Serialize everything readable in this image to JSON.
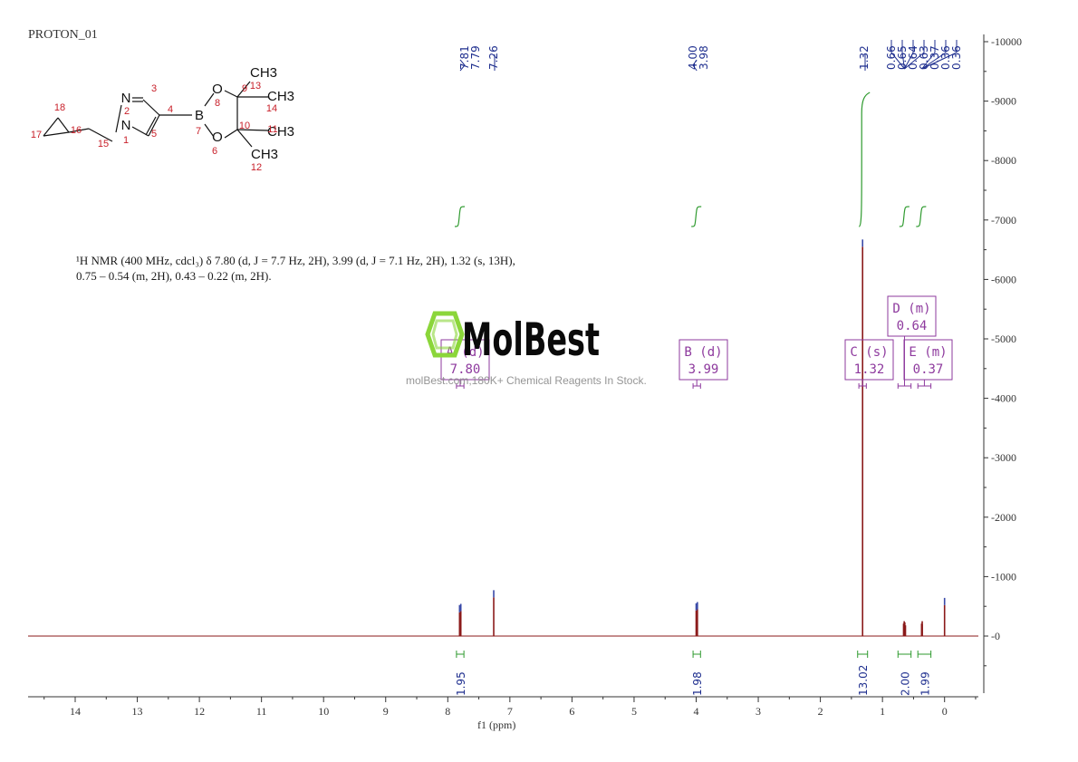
{
  "spectrum_name": "PROTON_01",
  "nmr_description": {
    "line1": "¹H NMR (400 MHz, cdcl₃) δ 7.80 (d, J = 7.7 Hz, 2H), 3.99 (d, J = 7.1 Hz, 2H), 1.32 (s, 13H),",
    "line2": "0.75 – 0.54 (m, 2H), 0.43 – 0.22 (m, 2H)."
  },
  "watermark": {
    "brand": "MolBest",
    "tagline": "molBest.com,180K+ Chemical Reagents In Stock."
  },
  "structure_labels": {
    "atoms": [
      "N",
      "N",
      "B",
      "O",
      "O",
      "CH3",
      "CH3",
      "CH3",
      "CH3"
    ],
    "numbers": [
      "1",
      "2",
      "3",
      "4",
      "5",
      "6",
      "7",
      "8",
      "9",
      "10",
      "11",
      "12",
      "13",
      "14",
      "15",
      "16",
      "17",
      "18"
    ]
  },
  "colors": {
    "spectrum": "#8b1a1a",
    "integral": "#2e9a2e",
    "peak_label": "#1f2f8f",
    "multiplet_box": "#8e3a9e",
    "axis": "#333333"
  },
  "chart_data": {
    "type": "line",
    "title": "PROTON_01",
    "xlabel": "f1 (ppm)",
    "ylabel": "",
    "xlim": [
      14.8,
      -0.5
    ],
    "ylim": [
      -1000,
      10000
    ],
    "x_ticks": [
      14,
      13,
      12,
      11,
      10,
      9,
      8,
      7,
      6,
      5,
      4,
      3,
      2,
      1,
      0
    ],
    "y_ticks": [
      0,
      1000,
      2000,
      3000,
      4000,
      5000,
      6000,
      7000,
      8000,
      9000,
      10000
    ],
    "y_tick_labels": [
      "0",
      "1000",
      "2000",
      "3000",
      "4000",
      "5000",
      "6000",
      "7000",
      "8000",
      "9000",
      "10000"
    ],
    "peaks": [
      {
        "ppm": 7.81,
        "height": 400
      },
      {
        "ppm": 7.79,
        "height": 420
      },
      {
        "ppm": 7.26,
        "height": 650
      },
      {
        "ppm": 4.0,
        "height": 430
      },
      {
        "ppm": 3.98,
        "height": 450
      },
      {
        "ppm": 1.32,
        "height": 6550
      },
      {
        "ppm": 0.66,
        "height": 210
      },
      {
        "ppm": 0.65,
        "height": 250
      },
      {
        "ppm": 0.64,
        "height": 230
      },
      {
        "ppm": 0.63,
        "height": 180
      },
      {
        "ppm": 0.37,
        "height": 210
      },
      {
        "ppm": 0.36,
        "height": 250
      },
      {
        "ppm": 0.36,
        "height": 200
      },
      {
        "ppm": 0.0,
        "height": 520
      }
    ],
    "peak_labels": [
      {
        "group": "A",
        "labels": [
          "7.81",
          "7.79"
        ]
      },
      {
        "group": "S",
        "labels": [
          "7.26"
        ]
      },
      {
        "group": "B",
        "labels": [
          "4.00",
          "3.98"
        ]
      },
      {
        "group": "C",
        "labels": [
          "1.32"
        ]
      },
      {
        "group": "DE",
        "labels": [
          "0.66",
          "0.65",
          "0.64",
          "0.63",
          "0.37",
          "0.36",
          "0.36"
        ]
      }
    ],
    "multiplets": [
      {
        "id": "A",
        "type": "d",
        "shift": "7.80",
        "range": [
          7.86,
          7.74
        ]
      },
      {
        "id": "B",
        "type": "d",
        "shift": "3.99",
        "range": [
          4.05,
          3.93
        ]
      },
      {
        "id": "C",
        "type": "s",
        "shift": "1.32",
        "range": [
          1.38,
          1.26
        ]
      },
      {
        "id": "D",
        "type": "m",
        "shift": "0.64",
        "range": [
          0.75,
          0.54
        ]
      },
      {
        "id": "E",
        "type": "m",
        "shift": "0.37",
        "range": [
          0.43,
          0.22
        ]
      }
    ],
    "integrals": [
      {
        "range": [
          7.86,
          7.74
        ],
        "value": "1.95"
      },
      {
        "range": [
          4.05,
          3.93
        ],
        "value": "1.98"
      },
      {
        "range": [
          1.4,
          1.24
        ],
        "value": "13.02"
      },
      {
        "range": [
          0.75,
          0.54
        ],
        "value": "2.00"
      },
      {
        "range": [
          0.43,
          0.22
        ],
        "value": "1.99"
      }
    ]
  }
}
